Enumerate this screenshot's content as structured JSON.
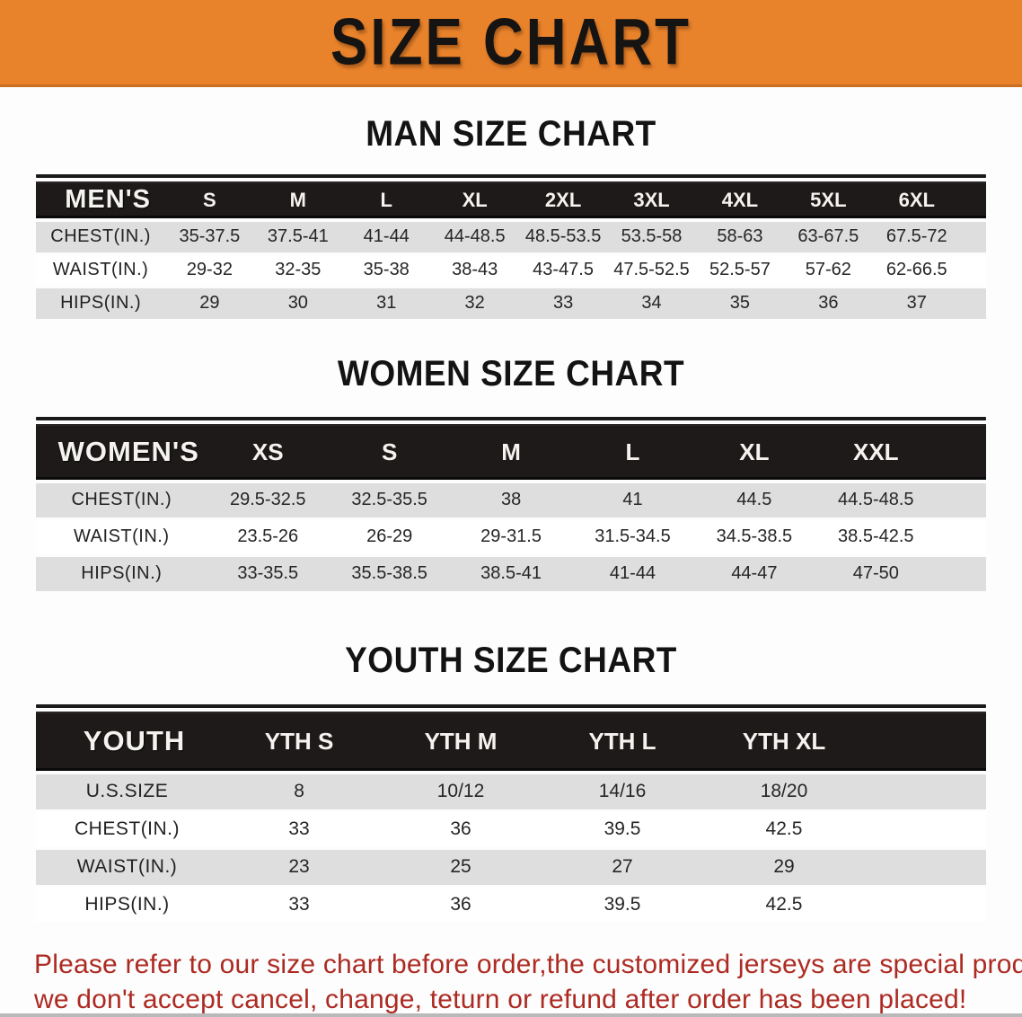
{
  "banner": {
    "title": "SIZE CHART",
    "bg_color": "#e8822b",
    "text_color": "#161413"
  },
  "colors": {
    "table_header_bg": "#1d1a19",
    "table_header_text": "#f5f3ef",
    "row_stripe": "#dedede",
    "footer_text": "#ad2a22"
  },
  "chart_data": [
    {
      "type": "table",
      "title": "MAN SIZE CHART",
      "header_label": "MEN'S",
      "columns": [
        "S",
        "M",
        "L",
        "XL",
        "2XL",
        "3XL",
        "4XL",
        "5XL",
        "6XL"
      ],
      "rows": [
        {
          "label": "CHEST(IN.)",
          "values": [
            "35-37.5",
            "37.5-41",
            "41-44",
            "44-48.5",
            "48.5-53.5",
            "53.5-58",
            "58-63",
            "63-67.5",
            "67.5-72"
          ]
        },
        {
          "label": "WAIST(IN.)",
          "values": [
            "29-32",
            "32-35",
            "35-38",
            "38-43",
            "43-47.5",
            "47.5-52.5",
            "52.5-57",
            "57-62",
            "62-66.5"
          ]
        },
        {
          "label": "HIPS(IN.)",
          "values": [
            "29",
            "30",
            "31",
            "32",
            "33",
            "34",
            "35",
            "36",
            "37"
          ]
        }
      ]
    },
    {
      "type": "table",
      "title": "WOMEN SIZE CHART",
      "header_label": "WOMEN'S",
      "columns": [
        "XS",
        "S",
        "M",
        "L",
        "XL",
        "XXL"
      ],
      "rows": [
        {
          "label": "CHEST(IN.)",
          "values": [
            "29.5-32.5",
            "32.5-35.5",
            "38",
            "41",
            "44.5",
            "44.5-48.5"
          ]
        },
        {
          "label": "WAIST(IN.)",
          "values": [
            "23.5-26",
            "26-29",
            "29-31.5",
            "31.5-34.5",
            "34.5-38.5",
            "38.5-42.5"
          ]
        },
        {
          "label": "HIPS(IN.)",
          "values": [
            "33-35.5",
            "35.5-38.5",
            "38.5-41",
            "41-44",
            "44-47",
            "47-50"
          ]
        }
      ]
    },
    {
      "type": "table",
      "title": "YOUTH SIZE CHART",
      "header_label": "YOUTH",
      "columns": [
        "YTH S",
        "YTH M",
        "YTH L",
        "YTH XL"
      ],
      "rows": [
        {
          "label": "U.S.SIZE",
          "values": [
            "8",
            "10/12",
            "14/16",
            "18/20"
          ]
        },
        {
          "label": "CHEST(IN.)",
          "values": [
            "33",
            "36",
            "39.5",
            "42.5"
          ]
        },
        {
          "label": "WAIST(IN.)",
          "values": [
            "23",
            "25",
            "27",
            "29"
          ]
        },
        {
          "label": "HIPS(IN.)",
          "values": [
            "33",
            "36",
            "39.5",
            "42.5"
          ]
        }
      ]
    }
  ],
  "footer": {
    "line1": "Please refer to our size chart before order,the customized jerseys are special products,",
    "line2": "we don't accept cancel, change, teturn or refund after order has been placed!"
  }
}
